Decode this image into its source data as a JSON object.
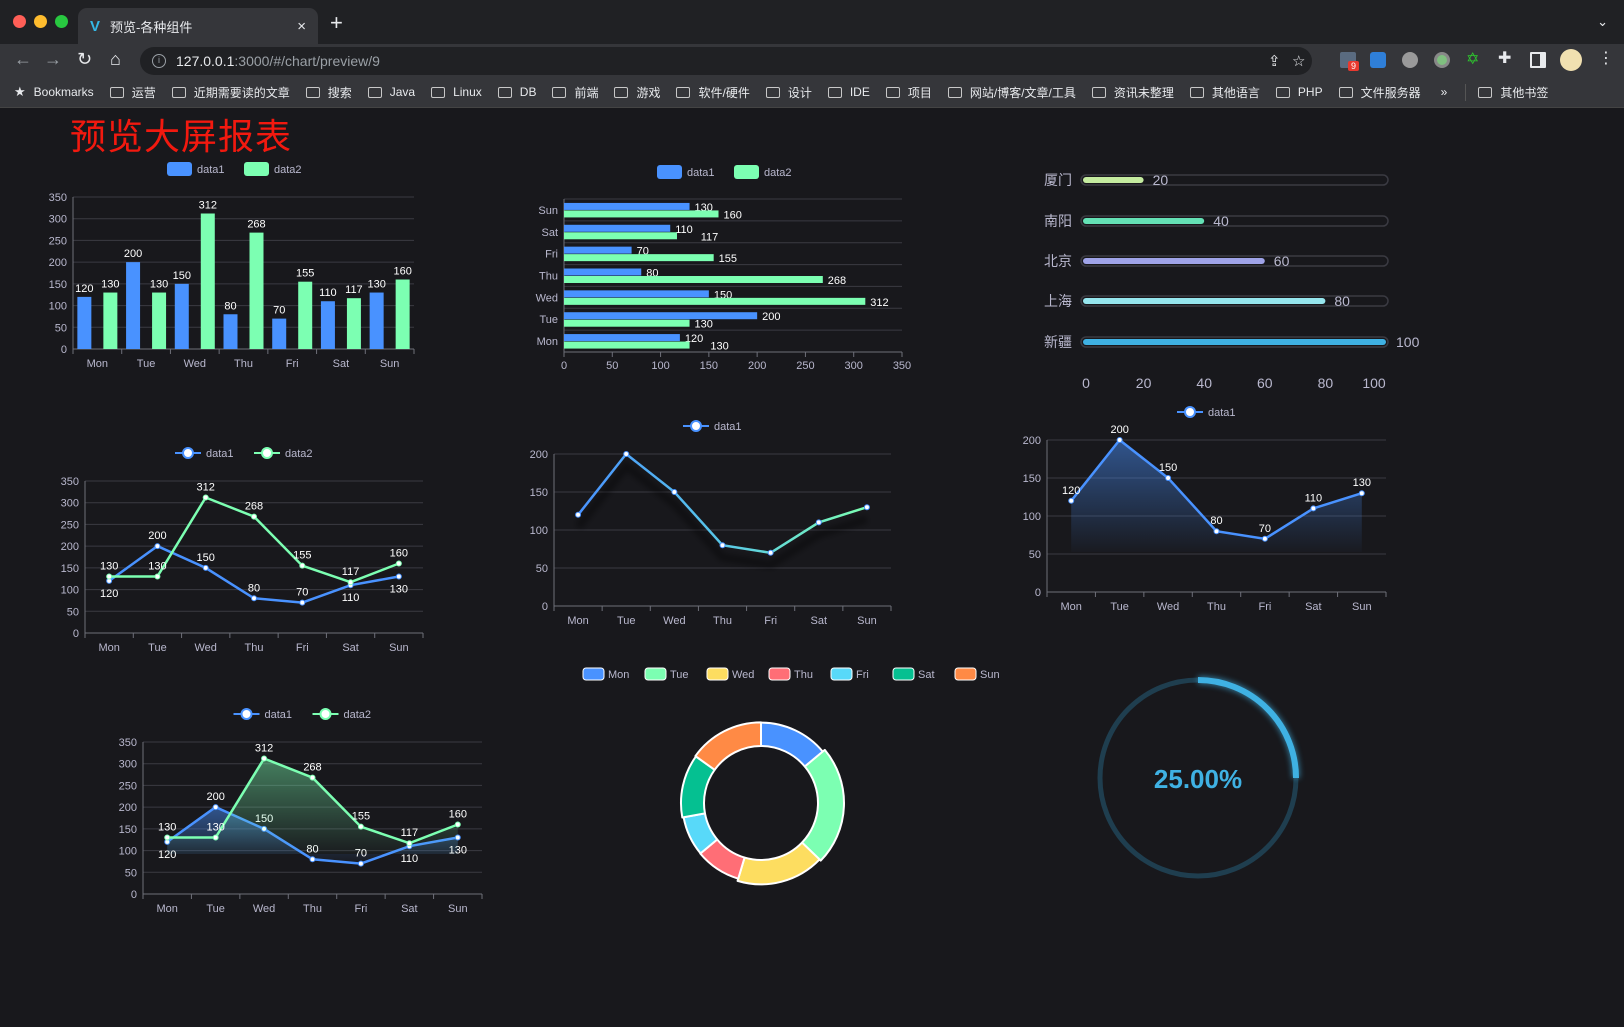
{
  "browser": {
    "tab_title": "预览-各种组件",
    "close_glyph": "×",
    "new_tab_glyph": "+",
    "url_host": "127.0.0.1",
    "url_rest": ":3000/#/chart/preview/9",
    "extension_badge": "9",
    "bookmarks_label": "Bookmarks",
    "bookmarks": [
      "运营",
      "近期需要读的文章",
      "搜索",
      "Java",
      "Linux",
      "DB",
      "前端",
      "游戏",
      "软件/硬件",
      "设计",
      "IDE",
      "项目",
      "网站/博客/文章/工具",
      "资讯未整理",
      "其他语言",
      "PHP",
      "文件服务器"
    ],
    "more": "»",
    "other_bookmarks": "其他书签"
  },
  "page": {
    "title": "预览大屏报表"
  },
  "colors": {
    "data1": "#4992ff",
    "data2": "#7cffb2",
    "background": "#18181c",
    "title": "#f2190f",
    "gauge": "#3fb1e3"
  },
  "chart_data": [
    {
      "type": "bar",
      "categories": [
        "Mon",
        "Tue",
        "Wed",
        "Thu",
        "Fri",
        "Sat",
        "Sun"
      ],
      "series": [
        {
          "name": "data1",
          "values": [
            120,
            200,
            150,
            80,
            70,
            110,
            130
          ]
        },
        {
          "name": "data2",
          "values": [
            130,
            130,
            312,
            268,
            155,
            117,
            160
          ]
        }
      ],
      "ylim": [
        0,
        350
      ],
      "ystep": 50,
      "labels": true,
      "legend": "top"
    },
    {
      "type": "bar",
      "orientation": "horizontal",
      "categories": [
        "Mon",
        "Tue",
        "Wed",
        "Thu",
        "Fri",
        "Sat",
        "Sun"
      ],
      "series": [
        {
          "name": "data1",
          "values": [
            120,
            200,
            150,
            80,
            70,
            110,
            130
          ]
        },
        {
          "name": "data2",
          "values": [
            130,
            130,
            312,
            268,
            155,
            117,
            160
          ]
        }
      ],
      "xlim": [
        0,
        350
      ],
      "xstep": 50,
      "labels": true,
      "legend": "top"
    },
    {
      "type": "bar",
      "orientation": "horizontal",
      "style": "progress",
      "categories": [
        "厦门",
        "南阳",
        "北京",
        "上海",
        "新疆"
      ],
      "values": [
        20,
        40,
        60,
        80,
        100
      ],
      "colors": [
        "#c5eca0",
        "#64e1b5",
        "#9fa3e8",
        "#96e6ee",
        "#3fb1e3"
      ],
      "xlim": [
        0,
        100
      ],
      "xstep": 20
    },
    {
      "type": "line",
      "categories": [
        "Mon",
        "Tue",
        "Wed",
        "Thu",
        "Fri",
        "Sat",
        "Sun"
      ],
      "series": [
        {
          "name": "data1",
          "values": [
            120,
            200,
            150,
            80,
            70,
            110,
            130
          ]
        },
        {
          "name": "data2",
          "values": [
            130,
            130,
            312,
            268,
            155,
            117,
            160
          ]
        }
      ],
      "ylim": [
        0,
        350
      ],
      "ystep": 50,
      "labels": true,
      "legend": "top"
    },
    {
      "type": "line",
      "categories": [
        "Mon",
        "Tue",
        "Wed",
        "Thu",
        "Fri",
        "Sat",
        "Sun"
      ],
      "series": [
        {
          "name": "data1",
          "values": [
            120,
            200,
            150,
            80,
            70,
            110,
            130
          ]
        }
      ],
      "ylim": [
        0,
        200
      ],
      "ystep": 50,
      "labels": false,
      "legend": "top"
    },
    {
      "type": "area",
      "categories": [
        "Mon",
        "Tue",
        "Wed",
        "Thu",
        "Fri",
        "Sat",
        "Sun"
      ],
      "series": [
        {
          "name": "data1",
          "values": [
            120,
            200,
            150,
            80,
            70,
            110,
            130
          ]
        }
      ],
      "ylim": [
        0,
        200
      ],
      "ystep": 50,
      "labels": true,
      "legend": "top"
    },
    {
      "type": "area",
      "categories": [
        "Mon",
        "Tue",
        "Wed",
        "Thu",
        "Fri",
        "Sat",
        "Sun"
      ],
      "series": [
        {
          "name": "data1",
          "values": [
            120,
            200,
            150,
            80,
            70,
            110,
            130
          ]
        },
        {
          "name": "data2",
          "values": [
            130,
            130,
            312,
            268,
            155,
            117,
            160
          ]
        }
      ],
      "ylim": [
        0,
        350
      ],
      "ystep": 50,
      "labels": true,
      "legend": "top"
    },
    {
      "type": "pie",
      "style": "donut",
      "categories": [
        "Mon",
        "Tue",
        "Wed",
        "Thu",
        "Fri",
        "Sat",
        "Sun"
      ],
      "values": [
        120,
        200,
        150,
        80,
        70,
        110,
        130
      ],
      "colors": [
        "#4992ff",
        "#7cffb2",
        "#fddd60",
        "#ff6e76",
        "#58d9f9",
        "#05c091",
        "#ff8a45"
      ],
      "legend": "top"
    },
    {
      "type": "gauge",
      "value": 25,
      "label": "25.00%",
      "color": "#3fb1e3"
    }
  ]
}
